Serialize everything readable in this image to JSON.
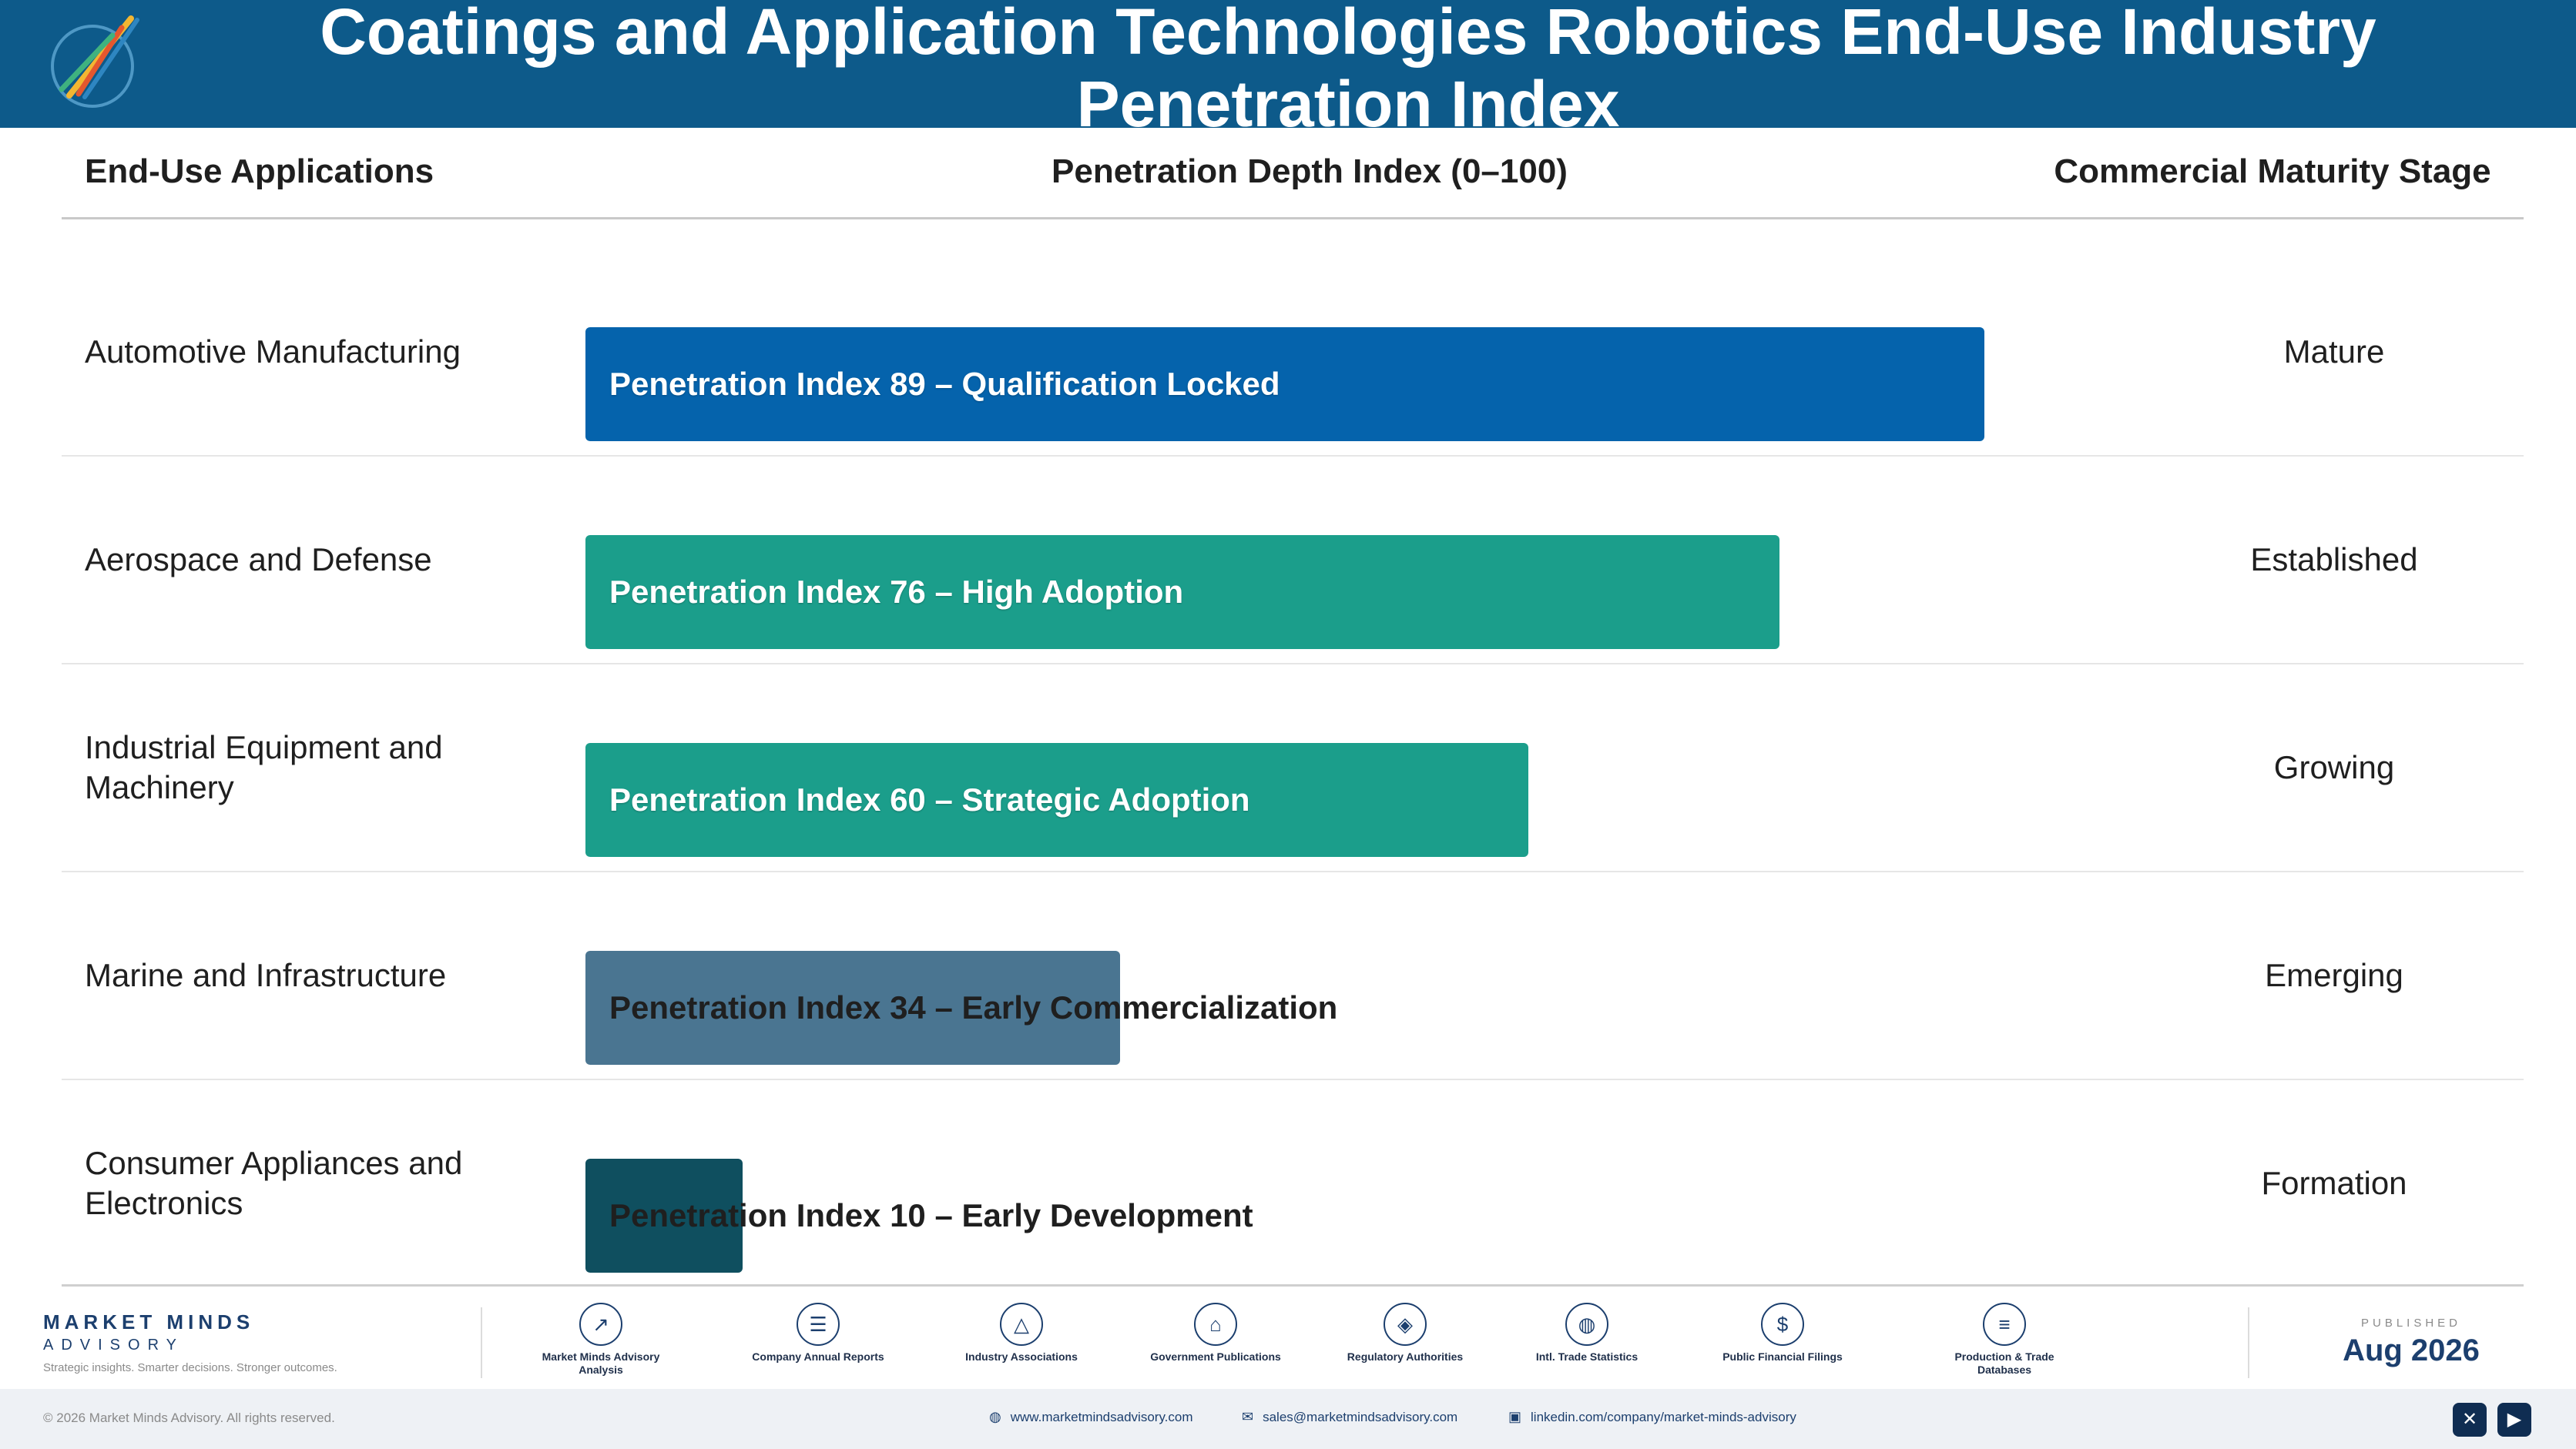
{
  "header": {
    "title": "Coatings and Application Technologies Robotics End-Use Industry Penetration Index"
  },
  "columns": {
    "applications": "End-Use Applications",
    "depth": "Penetration Depth Index (0–100)",
    "stage": "Commercial Maturity Stage"
  },
  "chart_data": {
    "type": "bar",
    "orientation": "horizontal",
    "categories": [
      "Automotive Manufacturing",
      "Aerospace and Defense",
      "Industrial Equipment and Machinery",
      "Marine and Infrastructure",
      "Consumer Appliances and Electronics"
    ],
    "values": [
      89,
      76,
      60,
      34,
      10
    ],
    "xlim": [
      0,
      100
    ],
    "bar_labels": [
      "Penetration Index 89 – Qualification Locked",
      "Penetration Index 76 – High Adoption",
      "Penetration Index 60 – Strategic Adoption",
      "Penetration Index 34 – Early Commercialization",
      "Penetration Index 10 – Early Development"
    ],
    "stages": [
      "Mature",
      "Established",
      "Growing",
      "Emerging",
      "Formation"
    ],
    "colors": [
      "#0563ac",
      "#1b9e8b",
      "#1b9e8b",
      "#4a7591",
      "#0f4f5f"
    ]
  },
  "footer": {
    "brand_line1": "MARKET MINDS",
    "brand_line2": "ADVISORY",
    "tagline": "Strategic insights. Smarter decisions. Stronger outcomes.",
    "sources": [
      {
        "icon": "chart-line-icon",
        "label": "Market Minds Advisory Analysis"
      },
      {
        "icon": "document-icon",
        "label": "Company Annual Reports"
      },
      {
        "icon": "network-icon",
        "label": "Industry Associations"
      },
      {
        "icon": "building-icon",
        "label": "Government Publications"
      },
      {
        "icon": "shield-icon",
        "label": "Regulatory Authorities"
      },
      {
        "icon": "globe-icon",
        "label": "Intl. Trade Statistics"
      },
      {
        "icon": "dollar-icon",
        "label": "Public Financial Filings"
      },
      {
        "icon": "database-icon",
        "label": "Production & Trade Databases"
      }
    ],
    "published_label": "PUBLISHED",
    "published_date": "Aug 2026",
    "copyright": "© 2026 Market Minds Advisory. All rights reserved.",
    "website": "www.marketmindsadvisory.com",
    "email": "sales@marketmindsadvisory.com",
    "linkedin": "linkedin.com/company/market-minds-advisory"
  }
}
